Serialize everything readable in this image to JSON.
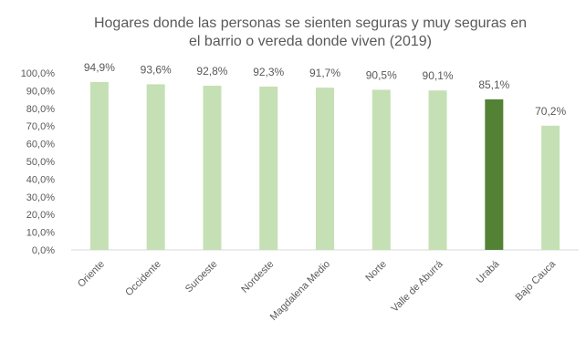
{
  "title_lines": [
    "Hogares donde las personas se sienten seguras y muy seguras en",
    "el barrio o vereda donde viven (2019)"
  ],
  "colors": {
    "bar_default": "#c5e0b4",
    "bar_highlight": "#548235",
    "text": "#595959",
    "axis_line": "#d9d9d9"
  },
  "chart_data": {
    "type": "bar",
    "title": "Hogares donde las personas se sienten seguras y muy seguras en el barrio o vereda donde viven (2019)",
    "xlabel": "",
    "ylabel": "",
    "ylim": [
      0,
      100
    ],
    "yticks": [
      "0,0%",
      "10,0%",
      "20,0%",
      "30,0%",
      "40,0%",
      "50,0%",
      "60,0%",
      "70,0%",
      "80,0%",
      "90,0%",
      "100,0%"
    ],
    "categories": [
      "Oriente",
      "Occidente",
      "Suroeste",
      "Nordeste",
      "Magdalena Medio",
      "Norte",
      "Valle de Aburrá",
      "Urabá",
      "Bajo Cauca"
    ],
    "values": [
      94.9,
      93.6,
      92.8,
      92.3,
      91.7,
      90.5,
      90.1,
      85.1,
      70.2
    ],
    "data_labels": [
      "94,9%",
      "93,6%",
      "92,8%",
      "92,3%",
      "91,7%",
      "90,5%",
      "90,1%",
      "85,1%",
      "70,2%"
    ],
    "highlight_category": "Urabá",
    "grid": false,
    "legend": "none"
  }
}
